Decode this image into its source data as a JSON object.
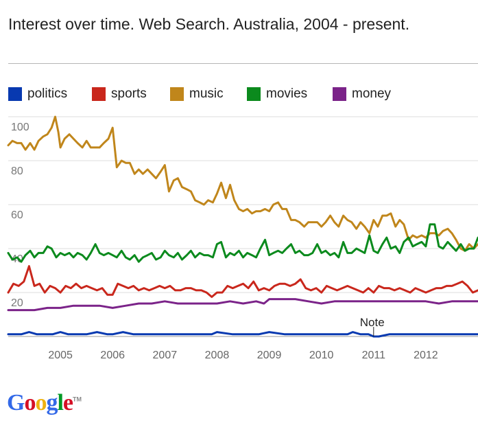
{
  "header": {
    "title": "Interest over time. Web Search. Australia, 2004 - present."
  },
  "logo": {
    "letters": [
      {
        "ch": "G",
        "color": "#3369e8"
      },
      {
        "ch": "o",
        "color": "#d50f25"
      },
      {
        "ch": "o",
        "color": "#eeb211"
      },
      {
        "ch": "g",
        "color": "#3369e8"
      },
      {
        "ch": "l",
        "color": "#009925"
      },
      {
        "ch": "e",
        "color": "#d50f25"
      }
    ],
    "tm": "TM"
  },
  "chart_data": {
    "type": "line",
    "title": "Interest over time. Web Search. Australia, 2004 - present.",
    "xlabel": "",
    "ylabel": "",
    "ylim": [
      0,
      100
    ],
    "x_range": [
      2004.0,
      2013.0
    ],
    "y_ticks": [
      20,
      40,
      60,
      80,
      100
    ],
    "x_ticks": [
      2005,
      2006,
      2007,
      2008,
      2009,
      2010,
      2011,
      2012
    ],
    "grid": true,
    "legend_position": "top",
    "annotations": [
      {
        "text": "Note",
        "x": 2011.0
      }
    ],
    "series": [
      {
        "name": "politics",
        "color": "#0839b0",
        "x": [
          2004.0,
          2004.25,
          2004.4,
          2004.55,
          2004.7,
          2004.85,
          2005.0,
          2005.15,
          2005.3,
          2005.5,
          2005.7,
          2005.9,
          2006.0,
          2006.2,
          2006.4,
          2006.6,
          2006.8,
          2007.0,
          2007.3,
          2007.6,
          2007.9,
          2008.0,
          2008.3,
          2008.6,
          2008.8,
          2009.0,
          2009.3,
          2009.6,
          2009.9,
          2010.2,
          2010.5,
          2010.6,
          2010.75,
          2010.9,
          2011.0,
          2011.1,
          2011.3,
          2011.6,
          2011.9,
          2012.2,
          2012.5,
          2012.8,
          2013.0
        ],
        "values": [
          1,
          1,
          2,
          1,
          1,
          1,
          2,
          1,
          1,
          1,
          2,
          1,
          1,
          2,
          1,
          1,
          1,
          1,
          1,
          1,
          1,
          2,
          1,
          1,
          1,
          2,
          1,
          1,
          1,
          1,
          1,
          2,
          1,
          1,
          0,
          0,
          1,
          1,
          1,
          1,
          1,
          1,
          1
        ]
      },
      {
        "name": "sports",
        "color": "#c9271c",
        "x": [
          2004.0,
          2004.1,
          2004.2,
          2004.3,
          2004.4,
          2004.5,
          2004.6,
          2004.7,
          2004.8,
          2004.9,
          2005.0,
          2005.1,
          2005.2,
          2005.3,
          2005.4,
          2005.5,
          2005.6,
          2005.7,
          2005.8,
          2005.9,
          2006.0,
          2006.1,
          2006.2,
          2006.3,
          2006.4,
          2006.5,
          2006.6,
          2006.7,
          2006.8,
          2006.9,
          2007.0,
          2007.1,
          2007.2,
          2007.3,
          2007.4,
          2007.5,
          2007.6,
          2007.7,
          2007.8,
          2007.9,
          2008.0,
          2008.1,
          2008.2,
          2008.3,
          2008.4,
          2008.5,
          2008.6,
          2008.7,
          2008.8,
          2008.9,
          2009.0,
          2009.1,
          2009.2,
          2009.3,
          2009.4,
          2009.5,
          2009.6,
          2009.7,
          2009.8,
          2009.9,
          2010.0,
          2010.1,
          2010.2,
          2010.3,
          2010.4,
          2010.5,
          2010.6,
          2010.7,
          2010.8,
          2010.9,
          2011.0,
          2011.1,
          2011.2,
          2011.3,
          2011.4,
          2011.5,
          2011.6,
          2011.7,
          2011.8,
          2011.9,
          2012.0,
          2012.1,
          2012.2,
          2012.3,
          2012.4,
          2012.5,
          2012.6,
          2012.7,
          2012.8,
          2012.9,
          2013.0
        ],
        "values": [
          20,
          24,
          23,
          25,
          32,
          23,
          24,
          20,
          23,
          22,
          20,
          23,
          22,
          24,
          22,
          23,
          22,
          21,
          22,
          19,
          19,
          24,
          23,
          22,
          23,
          21,
          22,
          21,
          22,
          23,
          22,
          23,
          21,
          21,
          22,
          22,
          21,
          21,
          20,
          18,
          20,
          20,
          23,
          22,
          23,
          24,
          22,
          25,
          21,
          22,
          21,
          23,
          24,
          24,
          23,
          24,
          26,
          22,
          21,
          22,
          20,
          23,
          22,
          21,
          22,
          23,
          22,
          21,
          20,
          22,
          20,
          23,
          22,
          22,
          21,
          22,
          21,
          20,
          22,
          21,
          20,
          21,
          22,
          22,
          23,
          23,
          24,
          25,
          23,
          20,
          21
        ]
      },
      {
        "name": "music",
        "color": "#c0861b",
        "x": [
          2004.0,
          2004.08,
          2004.17,
          2004.25,
          2004.33,
          2004.42,
          2004.5,
          2004.58,
          2004.67,
          2004.75,
          2004.83,
          2004.9,
          2004.96,
          2005.0,
          2005.08,
          2005.17,
          2005.25,
          2005.33,
          2005.42,
          2005.5,
          2005.58,
          2005.67,
          2005.75,
          2005.83,
          2005.92,
          2006.0,
          2006.08,
          2006.17,
          2006.25,
          2006.33,
          2006.42,
          2006.5,
          2006.58,
          2006.67,
          2006.75,
          2006.83,
          2006.92,
          2007.0,
          2007.08,
          2007.17,
          2007.25,
          2007.33,
          2007.42,
          2007.5,
          2007.58,
          2007.67,
          2007.75,
          2007.83,
          2007.92,
          2008.0,
          2008.08,
          2008.17,
          2008.25,
          2008.33,
          2008.42,
          2008.5,
          2008.58,
          2008.67,
          2008.75,
          2008.83,
          2008.92,
          2009.0,
          2009.08,
          2009.17,
          2009.25,
          2009.33,
          2009.42,
          2009.5,
          2009.58,
          2009.67,
          2009.75,
          2009.83,
          2009.92,
          2010.0,
          2010.08,
          2010.17,
          2010.25,
          2010.33,
          2010.42,
          2010.5,
          2010.58,
          2010.67,
          2010.75,
          2010.83,
          2010.92,
          2011.0,
          2011.08,
          2011.17,
          2011.25,
          2011.33,
          2011.42,
          2011.5,
          2011.58,
          2011.67,
          2011.75,
          2011.83,
          2011.92,
          2012.0,
          2012.08,
          2012.17,
          2012.25,
          2012.33,
          2012.42,
          2012.5,
          2012.58,
          2012.67,
          2012.75,
          2012.83,
          2012.92,
          2013.0
        ],
        "values": [
          87,
          89,
          88,
          88,
          85,
          88,
          85,
          89,
          91,
          92,
          95,
          100,
          93,
          86,
          90,
          92,
          90,
          88,
          86,
          89,
          86,
          86,
          86,
          88,
          90,
          95,
          77,
          80,
          79,
          79,
          74,
          76,
          74,
          76,
          74,
          72,
          75,
          78,
          66,
          71,
          72,
          68,
          67,
          66,
          62,
          61,
          60,
          62,
          61,
          65,
          70,
          63,
          69,
          62,
          58,
          57,
          58,
          56,
          57,
          57,
          58,
          57,
          60,
          61,
          58,
          58,
          53,
          53,
          52,
          50,
          52,
          52,
          52,
          50,
          52,
          55,
          52,
          50,
          55,
          53,
          52,
          49,
          52,
          50,
          47,
          53,
          50,
          55,
          55,
          56,
          50,
          53,
          51,
          44,
          46,
          45,
          46,
          45,
          47,
          47,
          46,
          48,
          49,
          47,
          44,
          40,
          39,
          42,
          40,
          42
        ]
      },
      {
        "name": "movies",
        "color": "#0b8a1d",
        "x": [
          2004.0,
          2004.08,
          2004.17,
          2004.25,
          2004.33,
          2004.42,
          2004.5,
          2004.58,
          2004.67,
          2004.75,
          2004.83,
          2004.92,
          2005.0,
          2005.08,
          2005.17,
          2005.25,
          2005.33,
          2005.42,
          2005.5,
          2005.58,
          2005.67,
          2005.75,
          2005.83,
          2005.92,
          2006.0,
          2006.08,
          2006.17,
          2006.25,
          2006.33,
          2006.42,
          2006.5,
          2006.58,
          2006.67,
          2006.75,
          2006.83,
          2006.92,
          2007.0,
          2007.08,
          2007.17,
          2007.25,
          2007.33,
          2007.42,
          2007.5,
          2007.58,
          2007.67,
          2007.75,
          2007.83,
          2007.92,
          2008.0,
          2008.08,
          2008.17,
          2008.25,
          2008.33,
          2008.42,
          2008.5,
          2008.58,
          2008.67,
          2008.75,
          2008.83,
          2008.92,
          2009.0,
          2009.08,
          2009.17,
          2009.25,
          2009.33,
          2009.42,
          2009.5,
          2009.58,
          2009.67,
          2009.75,
          2009.83,
          2009.92,
          2010.0,
          2010.08,
          2010.17,
          2010.25,
          2010.33,
          2010.42,
          2010.5,
          2010.58,
          2010.67,
          2010.75,
          2010.83,
          2010.92,
          2011.0,
          2011.08,
          2011.17,
          2011.25,
          2011.33,
          2011.42,
          2011.5,
          2011.58,
          2011.67,
          2011.75,
          2011.83,
          2011.92,
          2012.0,
          2012.08,
          2012.17,
          2012.25,
          2012.33,
          2012.42,
          2012.5,
          2012.58,
          2012.67,
          2012.75,
          2012.83,
          2012.92,
          2013.0
        ],
        "values": [
          38,
          35,
          36,
          34,
          37,
          39,
          36,
          38,
          38,
          41,
          40,
          36,
          38,
          37,
          38,
          36,
          38,
          37,
          35,
          38,
          42,
          38,
          37,
          38,
          37,
          36,
          39,
          36,
          35,
          37,
          34,
          36,
          37,
          38,
          35,
          36,
          39,
          37,
          36,
          38,
          35,
          37,
          39,
          36,
          38,
          37,
          37,
          36,
          42,
          43,
          36,
          38,
          37,
          39,
          36,
          38,
          37,
          36,
          40,
          44,
          37,
          38,
          39,
          38,
          40,
          42,
          38,
          39,
          37,
          37,
          38,
          42,
          38,
          39,
          37,
          38,
          36,
          43,
          38,
          38,
          40,
          39,
          38,
          46,
          39,
          38,
          42,
          45,
          40,
          41,
          38,
          43,
          45,
          41,
          42,
          43,
          41,
          51,
          51,
          41,
          40,
          43,
          41,
          39,
          42,
          39,
          40,
          40,
          45
        ]
      },
      {
        "name": "money",
        "color": "#7b2389",
        "x": [
          2004.0,
          2004.25,
          2004.5,
          2004.75,
          2005.0,
          2005.25,
          2005.5,
          2005.75,
          2006.0,
          2006.25,
          2006.5,
          2006.75,
          2007.0,
          2007.25,
          2007.5,
          2007.75,
          2008.0,
          2008.25,
          2008.5,
          2008.75,
          2008.9,
          2009.0,
          2009.25,
          2009.5,
          2009.75,
          2010.0,
          2010.25,
          2010.5,
          2010.75,
          2011.0,
          2011.25,
          2011.5,
          2011.75,
          2012.0,
          2012.25,
          2012.5,
          2012.75,
          2013.0
        ],
        "values": [
          12,
          12,
          12,
          13,
          13,
          14,
          14,
          14,
          13,
          14,
          15,
          15,
          16,
          15,
          15,
          15,
          15,
          16,
          15,
          16,
          15,
          17,
          17,
          17,
          16,
          15,
          16,
          16,
          16,
          16,
          16,
          16,
          16,
          16,
          15,
          16,
          16,
          16
        ]
      }
    ]
  }
}
